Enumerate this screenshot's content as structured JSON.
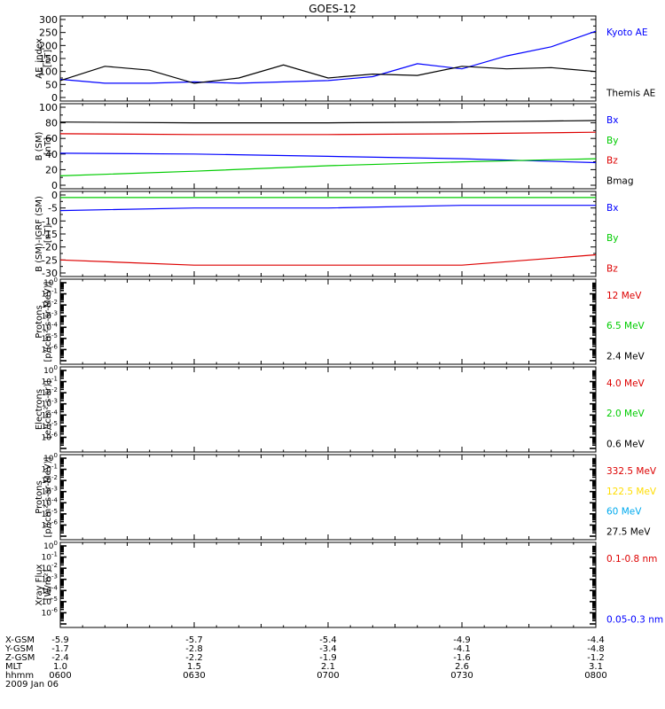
{
  "title": "GOES-12",
  "colors": {
    "black": "#000000",
    "blue": "#0000ff",
    "red": "#dd0000",
    "green": "#00cc00",
    "yellow": "#ffdd00",
    "cyan": "#00aaee"
  },
  "chart_data": [
    {
      "type": "line",
      "ylabel": "AE_index\n[nT]",
      "ylim": [
        0,
        300
      ],
      "yticks": [
        0,
        50,
        100,
        150,
        200,
        250,
        300
      ],
      "x": [
        600,
        610,
        620,
        630,
        640,
        650,
        700,
        710,
        720,
        730,
        740,
        750,
        800
      ],
      "series": [
        {
          "name": "Kyoto AE",
          "color": "blue",
          "values": [
            70,
            55,
            55,
            60,
            55,
            60,
            65,
            80,
            130,
            110,
            160,
            195,
            255
          ]
        },
        {
          "name": "Themis AE",
          "color": "black",
          "values": [
            65,
            120,
            105,
            55,
            75,
            125,
            75,
            90,
            85,
            120,
            110,
            115,
            100
          ]
        }
      ]
    },
    {
      "type": "line",
      "ylabel": "B (SM)\n[nT]",
      "ylim": [
        0,
        100
      ],
      "yticks": [
        0,
        20,
        40,
        60,
        80,
        100
      ],
      "x": [
        600,
        630,
        700,
        730,
        800
      ],
      "series": [
        {
          "name": "Bx",
          "color": "blue",
          "values": [
            41,
            40,
            37,
            34,
            29
          ]
        },
        {
          "name": "By",
          "color": "green",
          "values": [
            12,
            18,
            25,
            30,
            34
          ]
        },
        {
          "name": "Bz",
          "color": "red",
          "values": [
            66,
            65,
            65,
            66,
            68
          ]
        },
        {
          "name": "Bmag",
          "color": "black",
          "values": [
            81,
            80,
            80,
            81,
            83
          ]
        }
      ]
    },
    {
      "type": "line",
      "ylabel": "B (SM)-IGRF (SM)\n[nT]",
      "ylim": [
        -30,
        0
      ],
      "yticks": [
        -30,
        -25,
        -20,
        -15,
        -10,
        -5,
        0
      ],
      "x": [
        600,
        630,
        700,
        730,
        800
      ],
      "series": [
        {
          "name": "Bx",
          "color": "blue",
          "values": [
            -6,
            -5,
            -5,
            -4,
            -4
          ]
        },
        {
          "name": "By",
          "color": "green",
          "values": [
            -1,
            -1,
            -1,
            -1,
            -1
          ]
        },
        {
          "name": "Bz",
          "color": "red",
          "values": [
            -25,
            -27,
            -27,
            -27,
            -23
          ]
        }
      ]
    },
    {
      "type": "line",
      "ylabel": "Protons\n[p/(cm²-s-sr-MeV)]",
      "scale": "log",
      "ylim": [
        1e-07,
        1
      ],
      "series": [
        {
          "name": "12 MeV",
          "color": "red",
          "values": []
        },
        {
          "name": "6.5 MeV",
          "color": "green",
          "values": []
        },
        {
          "name": "2.4 MeV",
          "color": "black",
          "values": []
        }
      ]
    },
    {
      "type": "line",
      "ylabel": "Electrons\n[e/(cm²-s-sr)]",
      "scale": "log",
      "ylim": [
        1e-07,
        1
      ],
      "series": [
        {
          "name": "4.0 MeV",
          "color": "red",
          "values": []
        },
        {
          "name": "2.0 MeV",
          "color": "green",
          "values": []
        },
        {
          "name": "0.6 MeV",
          "color": "black",
          "values": []
        }
      ]
    },
    {
      "type": "line",
      "ylabel": "Protons\n[p/(cm²-s-sr-MeV)]",
      "scale": "log",
      "ylim": [
        1e-07,
        1
      ],
      "series": [
        {
          "name": "332.5 MeV",
          "color": "red",
          "values": []
        },
        {
          "name": "122.5 MeV",
          "color": "yellow",
          "values": []
        },
        {
          "name": "60 MeV",
          "color": "cyan",
          "values": []
        },
        {
          "name": "27.5 MeV",
          "color": "black",
          "values": []
        }
      ]
    },
    {
      "type": "line",
      "ylabel": "Xray Flux\n[W/m²]",
      "scale": "log",
      "ylim": [
        1e-07,
        1
      ],
      "series": [
        {
          "name": "0.1-0.8 nm",
          "color": "red",
          "values": []
        },
        {
          "name": "0.05-0.3 nm",
          "color": "blue",
          "values": []
        }
      ]
    }
  ],
  "log_tick_labels": [
    {
      "mant": "10",
      "exp": "0"
    },
    {
      "mant": "10",
      "exp": "-1"
    },
    {
      "mant": "10",
      "exp": "-2"
    },
    {
      "mant": "10",
      "exp": "-3"
    },
    {
      "mant": "10",
      "exp": "-4"
    },
    {
      "mant": "10",
      "exp": "-5"
    },
    {
      "mant": "10",
      "exp": "-6"
    }
  ],
  "x_axis": {
    "rows": [
      "X-GSM",
      "Y-GSM",
      "Z-GSM",
      "MLT",
      "hhmm"
    ],
    "columns": [
      {
        "values": [
          "-5.9",
          "-1.7",
          "-2.4",
          "1.0",
          "0600"
        ]
      },
      {
        "values": [
          "-5.7",
          "-2.8",
          "-2.2",
          "1.5",
          "0630"
        ]
      },
      {
        "values": [
          "-5.4",
          "-3.4",
          "-1.9",
          "2.1",
          "0700"
        ]
      },
      {
        "values": [
          "-4.9",
          "-4.1",
          "-1.6",
          "2.6",
          "0730"
        ]
      },
      {
        "values": [
          "-4.4",
          "-4.8",
          "-1.2",
          "3.1",
          "0800"
        ]
      }
    ],
    "date": "2009 Jan 06"
  }
}
